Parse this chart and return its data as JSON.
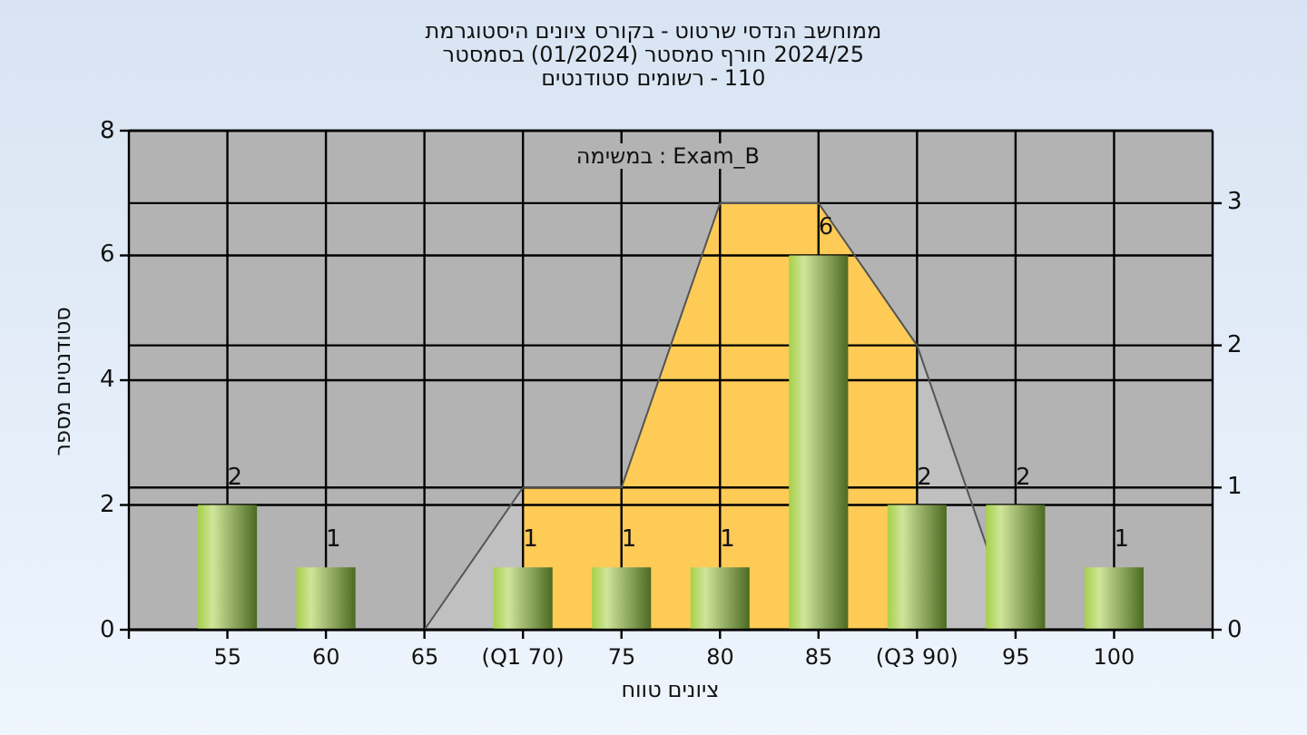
{
  "chart_data": {
    "type": "bar",
    "title": "היסטוגרמת ציונים בקורס - שרטוט הנדסי ממוחשב",
    "subtitle": "בסמסטר (01/2024) סמסטר חורף 2024/25",
    "annotations": [
      "סטודנטים רשומים - 110",
      "במשימה : Exam_B"
    ],
    "xlabel": "טווח ציונים",
    "ylabel": "מספר סטודנטים",
    "categories": [
      "55",
      "60",
      "65",
      "(Q1 70)",
      "75",
      "80",
      "85",
      "(Q3 90)",
      "95",
      "100"
    ],
    "series": [
      {
        "type": "area",
        "axis": "y2",
        "color": "#c0c0c0",
        "values": [
          null,
          null,
          0,
          1,
          null,
          null,
          null,
          2,
          0,
          null
        ]
      },
      {
        "type": "area",
        "axis": "y2",
        "color": "#fecb57",
        "values": [
          null,
          null,
          null,
          1,
          1,
          3,
          3,
          2,
          null,
          null
        ]
      },
      {
        "type": "bar",
        "color": "#8fb84a",
        "values": [
          2,
          1,
          0,
          1,
          1,
          1,
          6,
          2,
          2,
          1
        ],
        "value_labels": [
          "2",
          "1",
          null,
          "1",
          "1",
          "1",
          "6",
          "2",
          "2",
          "1"
        ]
      }
    ],
    "ylim": [
      0,
      8
    ],
    "yticks": [
      0,
      2,
      4,
      6,
      8
    ],
    "y2lim": [
      0,
      3.51
    ],
    "y2ticks": [
      0,
      1,
      2,
      3
    ],
    "grid": true
  }
}
